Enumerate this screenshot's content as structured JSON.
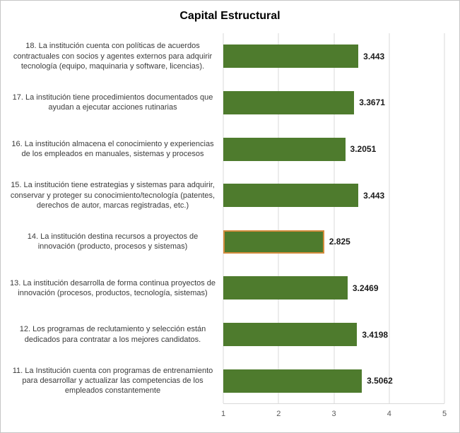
{
  "title": "Capital Estructural",
  "chart_data": {
    "type": "bar",
    "orientation": "horizontal",
    "title": "Capital Estructural",
    "xlim": [
      1,
      5
    ],
    "x_ticks": [
      "1",
      "2",
      "3",
      "4",
      "5"
    ],
    "grid": true,
    "bar_color": "#4e7b2d",
    "highlight_border_color": "#d38b3c",
    "items": [
      {
        "label": "18. La institución cuenta con políticas de acuerdos contractuales con socios y agentes externos para adquirir tecnología (equipo, maquinaria y software, licencias).",
        "value": 3.443,
        "value_label": "3.443",
        "highlight": false
      },
      {
        "label": "17. La institución tiene procedimientos documentados que ayudan a ejecutar acciones rutinarias",
        "value": 3.3671,
        "value_label": "3.3671",
        "highlight": false
      },
      {
        "label": "16. La institución almacena el conocimiento y experiencias de los empleados en manuales, sistemas y procesos",
        "value": 3.2051,
        "value_label": "3.2051",
        "highlight": false
      },
      {
        "label": "15. La institución tiene estrategias y sistemas para adquirir, conservar y proteger su conocimiento/tecnología (patentes, derechos de autor, marcas registradas, etc.)",
        "value": 3.443,
        "value_label": "3.443",
        "highlight": false
      },
      {
        "label": "14. La institución destina recursos a proyectos de innovación (producto, procesos y sistemas)",
        "value": 2.825,
        "value_label": "2.825",
        "highlight": true
      },
      {
        "label": "13. La institución desarrolla de forma continua proyectos de innovación (procesos, productos, tecnología, sistemas)",
        "value": 3.2469,
        "value_label": "3.2469",
        "highlight": false
      },
      {
        "label": "12. Los programas de reclutamiento y selección están dedicados para contratar a los mejores candidatos.",
        "value": 3.4198,
        "value_label": "3.4198",
        "highlight": false
      },
      {
        "label": "11. La Institución cuenta con programas de entrenamiento para desarrollar y actualizar las competencias de los empleados constantemente",
        "value": 3.5062,
        "value_label": "3.5062",
        "highlight": false
      }
    ]
  }
}
